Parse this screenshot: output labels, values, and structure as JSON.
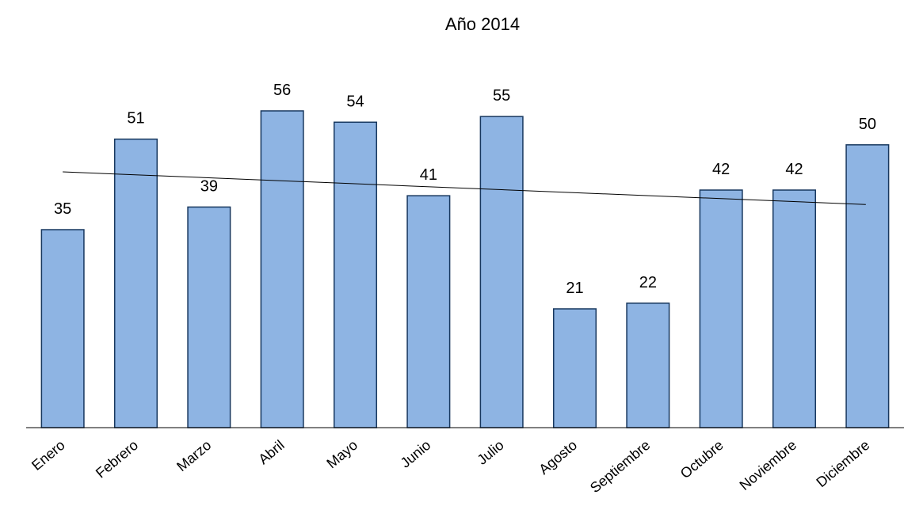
{
  "chart_data": {
    "type": "bar",
    "title": "Año 2014",
    "categories": [
      "Enero",
      "Febrero",
      "Marzo",
      "Abril",
      "Mayo",
      "Junio",
      "Julio",
      "Agosto",
      "Septiembre",
      "Octubre",
      "Noviembre",
      "Diciembre"
    ],
    "values": [
      35,
      51,
      39,
      56,
      54,
      41,
      55,
      21,
      22,
      42,
      42,
      50
    ],
    "ylim": [
      0,
      70
    ],
    "grid": false,
    "legend": "none",
    "trendline": "linear",
    "colors": {
      "bar_fill": "#8eb4e3",
      "bar_stroke": "#17375e",
      "trend": "#000000",
      "axis": "#000000"
    }
  }
}
